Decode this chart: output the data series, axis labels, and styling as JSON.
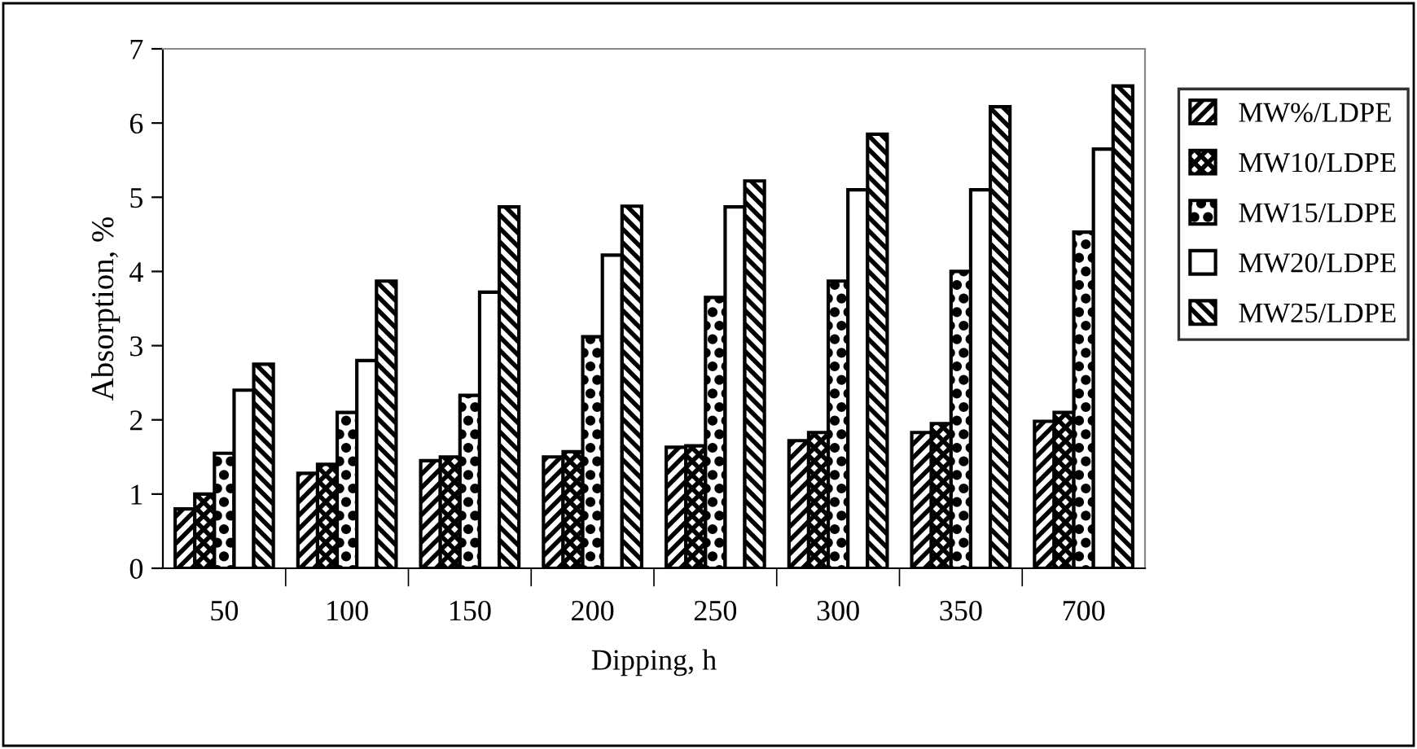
{
  "chart_data": {
    "type": "bar",
    "xlabel": "Dipping, h",
    "ylabel": "Absorption, %",
    "categories": [
      "50",
      "100",
      "150",
      "200",
      "250",
      "300",
      "350",
      "700"
    ],
    "series": [
      {
        "name": "MW%/LDPE",
        "color": "#000000",
        "values": [
          0.8,
          1.28,
          1.45,
          1.5,
          1.63,
          1.72,
          1.83,
          1.98
        ]
      },
      {
        "name": "MW10/LDPE",
        "color": "#000000",
        "values": [
          1.0,
          1.4,
          1.5,
          1.57,
          1.65,
          1.83,
          1.95,
          2.1
        ]
      },
      {
        "name": "MW15/LDPE",
        "color": "#000000",
        "values": [
          1.55,
          2.1,
          2.33,
          3.12,
          3.65,
          3.87,
          4.0,
          4.53
        ]
      },
      {
        "name": "MW20/LDPE",
        "color": "#ffffff",
        "values": [
          2.4,
          2.8,
          3.72,
          4.22,
          4.87,
          5.1,
          5.1,
          5.65
        ]
      },
      {
        "name": "MW25/LDPE",
        "color": "#000000",
        "values": [
          2.75,
          3.87,
          4.87,
          4.88,
          5.22,
          5.85,
          6.22,
          6.5
        ]
      }
    ],
    "ylim": [
      0,
      7
    ],
    "yticks": [
      0,
      1,
      2,
      3,
      4,
      5,
      6,
      7
    ],
    "grid": false,
    "legend": "right"
  }
}
